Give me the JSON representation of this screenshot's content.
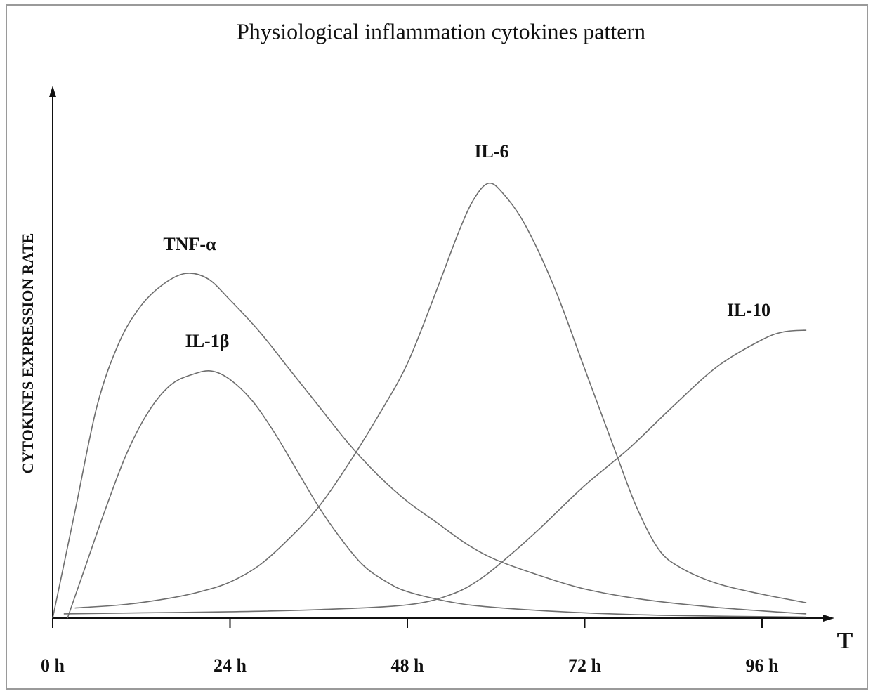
{
  "chart_data": {
    "type": "line",
    "title": "Physiological inflammation cytokines pattern",
    "x_label": "T",
    "y_label": "CYTOKINES EXPRESSION RATE",
    "xlim": [
      0,
      106
    ],
    "ylim": [
      0,
      100
    ],
    "xticks": [
      {
        "value": 0,
        "label": "0 h"
      },
      {
        "value": 24,
        "label": "24 h"
      },
      {
        "value": 48,
        "label": "48 h"
      },
      {
        "value": 72,
        "label": "72 h"
      },
      {
        "value": 96,
        "label": "96 h"
      }
    ],
    "series": [
      {
        "name": "TNF-α",
        "color": "#6e6e6e",
        "x": [
          0,
          3,
          6,
          9,
          12,
          15,
          18,
          21,
          24,
          28,
          32,
          36,
          40,
          44,
          48,
          52,
          56,
          60,
          66,
          72,
          80,
          90,
          102
        ],
        "values": [
          0,
          20,
          40,
          52,
          59,
          63,
          65,
          64,
          60,
          54,
          47,
          40,
          33,
          27,
          22,
          18,
          14,
          11,
          8,
          5.5,
          3.5,
          2,
          0.8
        ]
      },
      {
        "name": "IL-1β",
        "color": "#6e6e6e",
        "x": [
          2,
          4,
          7,
          10,
          13,
          16,
          19,
          21.5,
          24,
          27,
          30,
          33,
          36,
          39,
          42,
          45,
          48,
          54,
          60,
          72,
          84,
          102
        ],
        "values": [
          0,
          8,
          20,
          31,
          39,
          44,
          46,
          46.6,
          45,
          41,
          35,
          28,
          21,
          15,
          10,
          7,
          5,
          3,
          2,
          1,
          0.5,
          0.2
        ]
      },
      {
        "name": "IL-6",
        "color": "#6e6e6e",
        "x": [
          3,
          10,
          16,
          20,
          24,
          28,
          32,
          36,
          40,
          44,
          48,
          52,
          55,
          57,
          59,
          61,
          64,
          68,
          72,
          76,
          79,
          82,
          85,
          90,
          96,
          102
        ],
        "values": [
          1.9,
          2.6,
          3.8,
          5,
          6.8,
          10,
          15,
          21,
          29,
          38,
          48,
          62,
          73,
          79,
          82,
          80,
          74,
          62,
          47,
          32,
          21,
          13,
          9.5,
          6.5,
          4.5,
          2.9
        ]
      },
      {
        "name": "IL-10",
        "color": "#6e6e6e",
        "x": [
          1.5,
          12,
          24,
          36,
          48,
          54,
          58,
          62,
          66,
          72,
          78,
          84,
          90,
          96,
          99,
          102
        ],
        "values": [
          0.8,
          1,
          1.2,
          1.6,
          2.5,
          4.5,
          7.5,
          12,
          17,
          25,
          32,
          40,
          47.5,
          52.5,
          54,
          54.3
        ]
      }
    ]
  }
}
